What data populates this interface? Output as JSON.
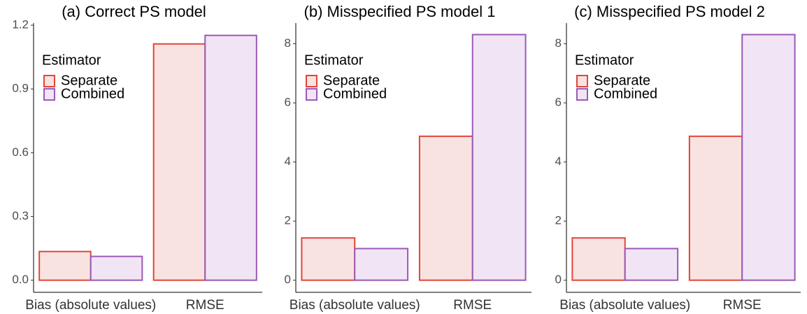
{
  "chart_data": [
    {
      "type": "bar",
      "title": "(a) Correct PS model",
      "legend_title": "Estimator",
      "categories": [
        "Bias (absolute values)",
        "RMSE"
      ],
      "series": [
        {
          "name": "Separate",
          "color": "#e0463b",
          "fill": "#f9e3e1",
          "values": [
            0.135,
            1.112
          ]
        },
        {
          "name": "Combined",
          "color": "#9b59b6",
          "fill": "#f1e5f5",
          "values": [
            0.112,
            1.152
          ]
        }
      ],
      "ylim": [
        -0.057,
        1.21
      ],
      "yticks": [
        {
          "value": 0,
          "label": "0.0"
        },
        0.3,
        0.6,
        0.9,
        1.2
      ]
    },
    {
      "type": "bar",
      "title": "(b) Misspecified PS model 1",
      "legend_title": "Estimator",
      "categories": [
        "Bias (absolute values)",
        "RMSE"
      ],
      "series": [
        {
          "name": "Separate",
          "color": "#e0463b",
          "fill": "#f9e3e1",
          "values": [
            1.43,
            4.87
          ]
        },
        {
          "name": "Combined",
          "color": "#9b59b6",
          "fill": "#f1e5f5",
          "values": [
            1.07,
            8.31
          ]
        }
      ],
      "ylim": [
        -0.41,
        8.7
      ],
      "yticks": [
        0,
        2,
        4,
        6,
        8
      ]
    },
    {
      "type": "bar",
      "title": "(c) Misspecified PS model 2",
      "legend_title": "Estimator",
      "categories": [
        "Bias (absolute values)",
        "RMSE"
      ],
      "series": [
        {
          "name": "Separate",
          "color": "#e0463b",
          "fill": "#f9e3e1",
          "values": [
            1.43,
            4.87
          ]
        },
        {
          "name": "Combined",
          "color": "#9b59b6",
          "fill": "#f1e5f5",
          "values": [
            1.07,
            8.31
          ]
        }
      ],
      "ylim": [
        -0.41,
        8.7
      ],
      "yticks": [
        0,
        2,
        4,
        6,
        8
      ]
    }
  ]
}
